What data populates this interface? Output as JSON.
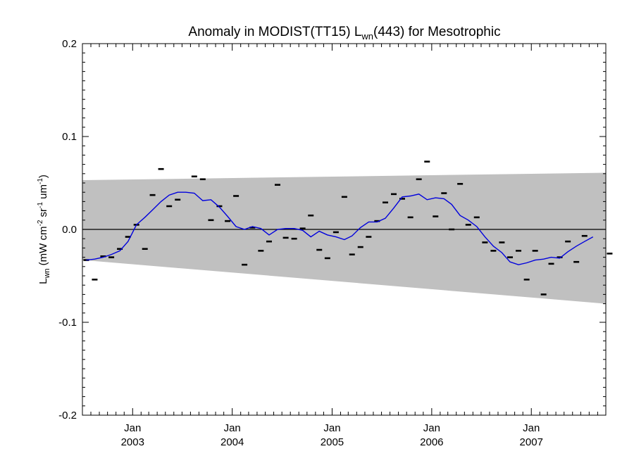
{
  "chart_data": {
    "type": "scatter",
    "title": "Anomaly in MODIST(TT15) L",
    "title_sub": "wn",
    "title_tail": "(443) for Mesotrophic",
    "ylabel": {
      "main": "L",
      "sub": "wn",
      "units_open": " (mW cm",
      "sup1": "-2",
      "units_mid": " sr",
      "sup2": "-1",
      "units_mid2": " um",
      "sup3": "-1",
      "units_close": ")"
    },
    "xlim": [
      "2002-07-01",
      "2007-10-01"
    ],
    "ylim": [
      -0.2,
      0.2
    ],
    "y_ticks": [
      {
        "value": 0.2,
        "label": "0.2"
      },
      {
        "value": 0.1,
        "label": "0.1"
      },
      {
        "value": 0.0,
        "label": "0.0"
      },
      {
        "value": -0.1,
        "label": "-0.1"
      },
      {
        "value": -0.2,
        "label": "-0.2"
      }
    ],
    "x_ticks": [
      {
        "date": "2003-01-01",
        "month_label": "Jan",
        "year_label": "2003"
      },
      {
        "date": "2004-01-01",
        "month_label": "Jan",
        "year_label": "2004"
      },
      {
        "date": "2005-01-01",
        "month_label": "Jan",
        "year_label": "2005"
      },
      {
        "date": "2006-01-01",
        "month_label": "Jan",
        "year_label": "2006"
      },
      {
        "date": "2007-01-01",
        "month_label": "Jan",
        "year_label": "2007"
      }
    ],
    "confidence_band": {
      "color": "#c0c0c0",
      "start": {
        "date": "2002-07-01",
        "upper": 0.053,
        "lower": -0.033
      },
      "end": {
        "date": "2007-10-01",
        "upper": 0.061,
        "lower": -0.08
      }
    },
    "zero_line": 0.0,
    "monthly_anomalies": {
      "color": "#000000",
      "points": [
        [
          "2002-07",
          -0.033
        ],
        [
          "2002-08",
          -0.054
        ],
        [
          "2002-09",
          -0.029
        ],
        [
          "2002-10",
          -0.03
        ],
        [
          "2002-11",
          -0.021
        ],
        [
          "2002-12",
          -0.008
        ],
        [
          "2003-01",
          0.005
        ],
        [
          "2003-02",
          -0.021
        ],
        [
          "2003-03",
          0.037
        ],
        [
          "2003-04",
          0.065
        ],
        [
          "2003-05",
          0.025
        ],
        [
          "2003-06",
          0.032
        ],
        [
          "2003-08",
          0.057
        ],
        [
          "2003-09",
          0.054
        ],
        [
          "2003-10",
          0.01
        ],
        [
          "2003-11",
          0.025
        ],
        [
          "2003-12",
          0.009
        ],
        [
          "2004-01",
          0.036
        ],
        [
          "2004-02",
          -0.038
        ],
        [
          "2004-03",
          0.002
        ],
        [
          "2004-04",
          -0.023
        ],
        [
          "2004-05",
          -0.013
        ],
        [
          "2004-06",
          0.048
        ],
        [
          "2004-07",
          -0.009
        ],
        [
          "2004-08",
          -0.01
        ],
        [
          "2004-09",
          0.001
        ],
        [
          "2004-10",
          0.015
        ],
        [
          "2004-11",
          -0.022
        ],
        [
          "2004-12",
          -0.031
        ],
        [
          "2005-01",
          -0.003
        ],
        [
          "2005-02",
          0.035
        ],
        [
          "2005-03",
          -0.027
        ],
        [
          "2005-04",
          -0.019
        ],
        [
          "2005-05",
          -0.008
        ],
        [
          "2005-06",
          0.009
        ],
        [
          "2005-07",
          0.029
        ],
        [
          "2005-08",
          0.038
        ],
        [
          "2005-09",
          0.033
        ],
        [
          "2005-10",
          0.013
        ],
        [
          "2005-11",
          0.054
        ],
        [
          "2005-12",
          0.073
        ],
        [
          "2006-01",
          0.014
        ],
        [
          "2006-02",
          0.039
        ],
        [
          "2006-03",
          0.0
        ],
        [
          "2006-04",
          0.049
        ],
        [
          "2006-05",
          0.005
        ],
        [
          "2006-06",
          0.013
        ],
        [
          "2006-07",
          -0.014
        ],
        [
          "2006-08",
          -0.023
        ],
        [
          "2006-09",
          -0.014
        ],
        [
          "2006-10",
          -0.03
        ],
        [
          "2006-11",
          -0.023
        ],
        [
          "2006-12",
          -0.054
        ],
        [
          "2007-01",
          -0.023
        ],
        [
          "2007-02",
          -0.07
        ],
        [
          "2007-03",
          -0.037
        ],
        [
          "2007-04",
          -0.03
        ],
        [
          "2007-05",
          -0.013
        ],
        [
          "2007-06",
          -0.035
        ],
        [
          "2007-07",
          -0.007
        ],
        [
          "2007-10",
          -0.026
        ]
      ]
    },
    "running_mean": {
      "color": "#0000dd",
      "points": [
        [
          "2002-07",
          -0.033
        ],
        [
          "2002-08",
          -0.032
        ],
        [
          "2002-09",
          -0.03
        ],
        [
          "2002-10",
          -0.027
        ],
        [
          "2002-11",
          -0.023
        ],
        [
          "2002-12",
          -0.013
        ],
        [
          "2003-01",
          0.005
        ],
        [
          "2003-02",
          0.013
        ],
        [
          "2003-03",
          0.021
        ],
        [
          "2003-04",
          0.03
        ],
        [
          "2003-05",
          0.037
        ],
        [
          "2003-06",
          0.04
        ],
        [
          "2003-07",
          0.04
        ],
        [
          "2003-08",
          0.039
        ],
        [
          "2003-09",
          0.031
        ],
        [
          "2003-10",
          0.032
        ],
        [
          "2003-11",
          0.024
        ],
        [
          "2003-12",
          0.014
        ],
        [
          "2004-01",
          0.003
        ],
        [
          "2004-02",
          0.0
        ],
        [
          "2004-03",
          0.003
        ],
        [
          "2004-04",
          0.001
        ],
        [
          "2004-05",
          -0.006
        ],
        [
          "2004-06",
          0.0
        ],
        [
          "2004-07",
          0.001
        ],
        [
          "2004-08",
          0.001
        ],
        [
          "2004-09",
          -0.001
        ],
        [
          "2004-10",
          -0.008
        ],
        [
          "2004-11",
          -0.002
        ],
        [
          "2004-12",
          -0.006
        ],
        [
          "2005-01",
          -0.008
        ],
        [
          "2005-02",
          -0.011
        ],
        [
          "2005-03",
          -0.007
        ],
        [
          "2005-04",
          0.002
        ],
        [
          "2005-05",
          0.008
        ],
        [
          "2005-06",
          0.008
        ],
        [
          "2005-07",
          0.012
        ],
        [
          "2005-08",
          0.023
        ],
        [
          "2005-09",
          0.035
        ],
        [
          "2005-10",
          0.036
        ],
        [
          "2005-11",
          0.038
        ],
        [
          "2005-12",
          0.032
        ],
        [
          "2006-01",
          0.034
        ],
        [
          "2006-02",
          0.033
        ],
        [
          "2006-03",
          0.027
        ],
        [
          "2006-04",
          0.015
        ],
        [
          "2006-05",
          0.01
        ],
        [
          "2006-06",
          0.003
        ],
        [
          "2006-07",
          -0.008
        ],
        [
          "2006-08",
          -0.018
        ],
        [
          "2006-09",
          -0.025
        ],
        [
          "2006-10",
          -0.035
        ],
        [
          "2006-11",
          -0.038
        ],
        [
          "2006-12",
          -0.036
        ],
        [
          "2007-01",
          -0.033
        ],
        [
          "2007-02",
          -0.032
        ],
        [
          "2007-03",
          -0.03
        ],
        [
          "2007-04",
          -0.031
        ],
        [
          "2007-05",
          -0.024
        ],
        [
          "2007-06",
          -0.018
        ],
        [
          "2007-07",
          -0.013
        ],
        [
          "2007-08",
          -0.008
        ]
      ]
    },
    "grid": false,
    "legend": "none"
  }
}
